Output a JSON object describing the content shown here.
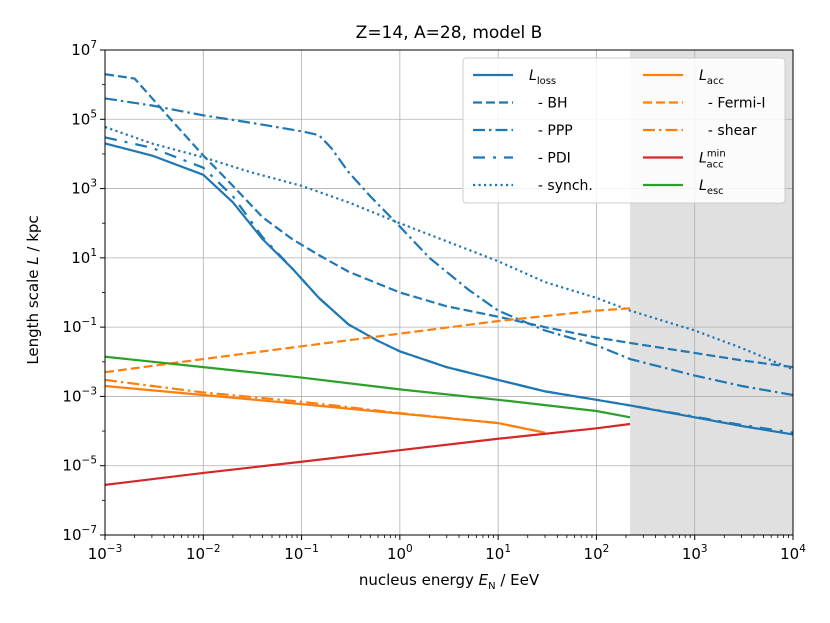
{
  "chart_data": {
    "type": "line",
    "title": "Z=14, A=28, model B",
    "xlabel": {
      "prefix": "nucleus energy ",
      "sym": "E",
      "sub": "N",
      "suffix": " / EeV"
    },
    "ylabel": {
      "prefix": "Length scale ",
      "sym": "L",
      "suffix": " / kpc"
    },
    "xscale": "log",
    "yscale": "log",
    "xlim": [
      0.001,
      10000
    ],
    "ylim": [
      1e-07,
      10000000.0
    ],
    "xticks": [
      {
        "base": "10",
        "exp": "−3"
      },
      {
        "base": "10",
        "exp": "−2"
      },
      {
        "base": "10",
        "exp": "−1"
      },
      {
        "base": "10",
        "exp": "0"
      },
      {
        "base": "10",
        "exp": "1"
      },
      {
        "base": "10",
        "exp": "2"
      },
      {
        "base": "10",
        "exp": "3"
      },
      {
        "base": "10",
        "exp": "4"
      }
    ],
    "yticks": [
      {
        "base": "10",
        "exp": "−7"
      },
      {
        "base": "10",
        "exp": "−5"
      },
      {
        "base": "10",
        "exp": "−3"
      },
      {
        "base": "10",
        "exp": "−1"
      },
      {
        "base": "10",
        "exp": "1"
      },
      {
        "base": "10",
        "exp": "3"
      },
      {
        "base": "10",
        "exp": "5"
      },
      {
        "base": "10",
        "exp": "7"
      }
    ],
    "grid": true,
    "shaded_region": {
      "x_from": 220,
      "x_to": 10000,
      "color": "#e0e0e0"
    },
    "legend_position": "top-right",
    "series": [
      {
        "id": "L_loss",
        "sym": "L",
        "sub": "loss",
        "sup": "",
        "label": "",
        "color": "#1f77b4",
        "dash": "solid",
        "points": [
          [
            0.001,
            20000
          ],
          [
            0.003,
            9000
          ],
          [
            0.01,
            2500
          ],
          [
            0.02,
            400
          ],
          [
            0.04,
            35
          ],
          [
            0.08,
            5
          ],
          [
            0.15,
            0.7
          ],
          [
            0.3,
            0.12
          ],
          [
            0.6,
            0.04
          ],
          [
            1,
            0.02
          ],
          [
            3,
            0.007
          ],
          [
            10,
            0.003
          ],
          [
            30,
            0.0014
          ],
          [
            100,
            0.0008
          ],
          [
            220,
            0.00055
          ],
          [
            1000,
            0.00025
          ],
          [
            3000,
            0.00014
          ],
          [
            10000,
            8e-05
          ]
        ]
      },
      {
        "id": "BH",
        "sym": "",
        "sub": "",
        "sup": "",
        "label": "- BH",
        "color": "#1f77b4",
        "dash": "dash",
        "points": [
          [
            0.001,
            2000000
          ],
          [
            0.002,
            1500000
          ],
          [
            0.005,
            80000
          ],
          [
            0.01,
            9000
          ],
          [
            0.02,
            1200
          ],
          [
            0.04,
            150
          ],
          [
            0.08,
            35
          ],
          [
            0.15,
            12
          ],
          [
            0.3,
            4
          ],
          [
            1,
            1
          ],
          [
            3,
            0.4
          ],
          [
            10,
            0.2
          ],
          [
            30,
            0.1
          ],
          [
            100,
            0.05
          ],
          [
            220,
            0.035
          ],
          [
            1000,
            0.018
          ],
          [
            3000,
            0.011
          ],
          [
            10000,
            0.007
          ]
        ]
      },
      {
        "id": "PPP",
        "sym": "",
        "sub": "",
        "sup": "",
        "label": "- PPP",
        "color": "#1f77b4",
        "dash": "dashdot",
        "points": [
          [
            0.001,
            400000
          ],
          [
            0.003,
            250000
          ],
          [
            0.01,
            130000
          ],
          [
            0.03,
            80000
          ],
          [
            0.1,
            45000
          ],
          [
            0.15,
            35000
          ],
          [
            0.2,
            15000
          ],
          [
            0.3,
            3000
          ],
          [
            0.5,
            600
          ],
          [
            1,
            80
          ],
          [
            2,
            10
          ],
          [
            5,
            1.2
          ],
          [
            10,
            0.3
          ],
          [
            30,
            0.08
          ],
          [
            100,
            0.03
          ],
          [
            220,
            0.012
          ],
          [
            1000,
            0.004
          ],
          [
            3000,
            0.002
          ],
          [
            10000,
            0.0011
          ]
        ]
      },
      {
        "id": "PDI",
        "sym": "",
        "sub": "",
        "sup": "",
        "label": "- PDI",
        "color": "#1f77b4",
        "dash": "loosedashdot",
        "points": [
          [
            0.001,
            30000
          ],
          [
            0.003,
            15000
          ],
          [
            0.01,
            4000
          ],
          [
            0.02,
            600
          ],
          [
            0.04,
            40
          ],
          [
            0.08,
            5
          ],
          [
            0.15,
            0.7
          ],
          [
            0.3,
            0.12
          ],
          [
            0.6,
            0.04
          ],
          [
            1,
            0.02
          ],
          [
            3,
            0.007
          ],
          [
            10,
            0.003
          ],
          [
            30,
            0.0014
          ],
          [
            100,
            0.0008
          ],
          [
            220,
            0.00055
          ],
          [
            1000,
            0.00026
          ],
          [
            3000,
            0.00015
          ],
          [
            10000,
            9e-05
          ]
        ]
      },
      {
        "id": "synch",
        "sym": "",
        "sub": "",
        "sup": "",
        "label": "- synch.",
        "color": "#1f77b4",
        "dash": "dotted",
        "points": [
          [
            0.001,
            60000
          ],
          [
            0.003,
            20000
          ],
          [
            0.01,
            8000
          ],
          [
            0.03,
            3000
          ],
          [
            0.1,
            1200
          ],
          [
            0.3,
            400
          ],
          [
            1,
            100
          ],
          [
            3,
            30
          ],
          [
            10,
            8
          ],
          [
            30,
            2
          ],
          [
            100,
            0.7
          ],
          [
            220,
            0.3
          ],
          [
            1000,
            0.08
          ],
          [
            3000,
            0.025
          ],
          [
            10000,
            0.006
          ]
        ]
      },
      {
        "id": "L_acc",
        "sym": "L",
        "sub": "acc",
        "sup": "",
        "label": "",
        "color": "#ff7f0e",
        "dash": "solid",
        "points": [
          [
            0.001,
            0.002
          ],
          [
            0.01,
            0.0011
          ],
          [
            0.1,
            0.0006
          ],
          [
            1,
            0.00032
          ],
          [
            10,
            0.00017
          ],
          [
            30,
            9e-05
          ]
        ]
      },
      {
        "id": "FermiI",
        "sym": "",
        "sub": "",
        "sup": "",
        "label": "- Fermi-I",
        "color": "#ff7f0e",
        "dash": "dash",
        "points": [
          [
            0.001,
            0.005
          ],
          [
            0.01,
            0.012
          ],
          [
            0.1,
            0.028
          ],
          [
            1,
            0.065
          ],
          [
            10,
            0.15
          ],
          [
            100,
            0.3
          ],
          [
            220,
            0.35
          ]
        ]
      },
      {
        "id": "shear",
        "sym": "",
        "sub": "",
        "sup": "",
        "label": "- shear",
        "color": "#ff7f0e",
        "dash": "dashdot",
        "points": [
          [
            0.001,
            0.003
          ],
          [
            0.01,
            0.0013
          ],
          [
            0.1,
            0.0007
          ],
          [
            1,
            0.00033
          ],
          [
            10,
            0.00017
          ],
          [
            30,
            9e-05
          ]
        ]
      },
      {
        "id": "L_acc_min",
        "sym": "L",
        "sub": "acc",
        "sup": "min",
        "label": "",
        "color": "#d62728",
        "dash": "solid",
        "points": [
          [
            0.001,
            2.8e-06
          ],
          [
            0.01,
            6.2e-06
          ],
          [
            0.1,
            1.3e-05
          ],
          [
            1,
            2.8e-05
          ],
          [
            10,
            6e-05
          ],
          [
            100,
            0.00012
          ],
          [
            220,
            0.00016
          ]
        ]
      },
      {
        "id": "L_esc",
        "sym": "L",
        "sub": "esc",
        "sup": "",
        "label": "",
        "color": "#2ca02c",
        "dash": "solid",
        "points": [
          [
            0.001,
            0.014
          ],
          [
            0.01,
            0.007
          ],
          [
            0.1,
            0.0035
          ],
          [
            1,
            0.0016
          ],
          [
            10,
            0.0008
          ],
          [
            100,
            0.00038
          ],
          [
            220,
            0.00025
          ]
        ]
      }
    ]
  }
}
